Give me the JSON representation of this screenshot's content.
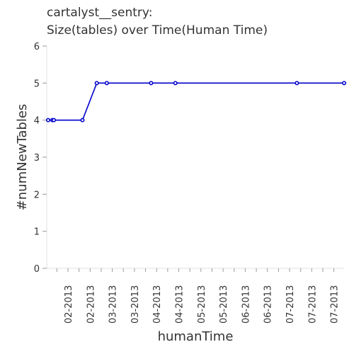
{
  "chart_data": {
    "type": "line",
    "title_line1": "cartalyst__sentry:",
    "title_line2": "Size(tables) over Time(Human Time)",
    "xlabel": "humanTime",
    "ylabel": "#numNewTables",
    "ylim": [
      0,
      6
    ],
    "yticks": [
      "0",
      "1",
      "2",
      "3",
      "4",
      "5",
      "6"
    ],
    "xticks": [
      "02-2013",
      "02-2013",
      "03-2013",
      "03-2013",
      "04-2013",
      "04-2013",
      "05-2013",
      "05-2013",
      "06-2013",
      "06-2013",
      "07-2013",
      "07-2013",
      "07-2013"
    ],
    "grid": false,
    "line_color": "#0000cc",
    "series": [
      {
        "x": [
          "2013-01-27",
          "2013-01-30",
          "2013-01-31",
          "2013-02-20",
          "2013-03-02",
          "2013-03-09",
          "2013-04-09",
          "2013-04-26",
          "2013-07-20",
          "2013-08-22"
        ],
        "values": [
          4,
          4,
          4,
          4,
          5,
          5,
          5,
          5,
          5,
          5
        ]
      }
    ]
  }
}
